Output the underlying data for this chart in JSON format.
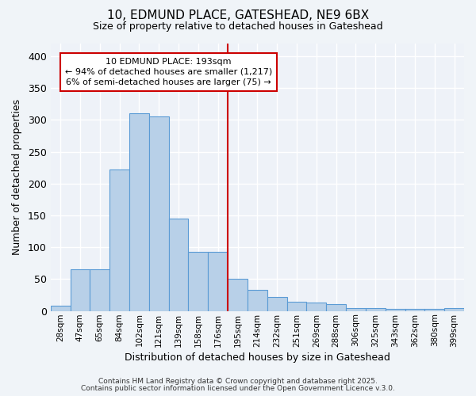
{
  "title_line1": "10, EDMUND PLACE, GATESHEAD, NE9 6BX",
  "title_line2": "Size of property relative to detached houses in Gateshead",
  "xlabel": "Distribution of detached houses by size in Gateshead",
  "ylabel": "Number of detached properties",
  "categories": [
    "28sqm",
    "47sqm",
    "65sqm",
    "84sqm",
    "102sqm",
    "121sqm",
    "139sqm",
    "158sqm",
    "176sqm",
    "195sqm",
    "214sqm",
    "232sqm",
    "251sqm",
    "269sqm",
    "288sqm",
    "306sqm",
    "325sqm",
    "343sqm",
    "362sqm",
    "380sqm",
    "399sqm"
  ],
  "values": [
    8,
    65,
    65,
    222,
    310,
    305,
    145,
    93,
    93,
    50,
    33,
    22,
    15,
    13,
    11,
    5,
    4,
    3,
    3,
    3,
    4
  ],
  "bar_color": "#b8d0e8",
  "bar_edge_color": "#5b9bd5",
  "bar_linewidth": 0.8,
  "vline_color": "#cc0000",
  "vline_x_index": 9,
  "annotation_line1": "10 EDMUND PLACE: 193sqm",
  "annotation_line2": "← 94% of detached houses are smaller (1,217)",
  "annotation_line3": "6% of semi-detached houses are larger (75) →",
  "annotation_box_color": "#ffffff",
  "annotation_box_edge_color": "#cc0000",
  "ylim": [
    0,
    420
  ],
  "yticks": [
    0,
    50,
    100,
    150,
    200,
    250,
    300,
    350,
    400
  ],
  "bg_color": "#f0f4f8",
  "plot_bg_color": "#eef2f8",
  "footer_line1": "Contains HM Land Registry data © Crown copyright and database right 2025.",
  "footer_line2": "Contains public sector information licensed under the Open Government Licence v.3.0."
}
